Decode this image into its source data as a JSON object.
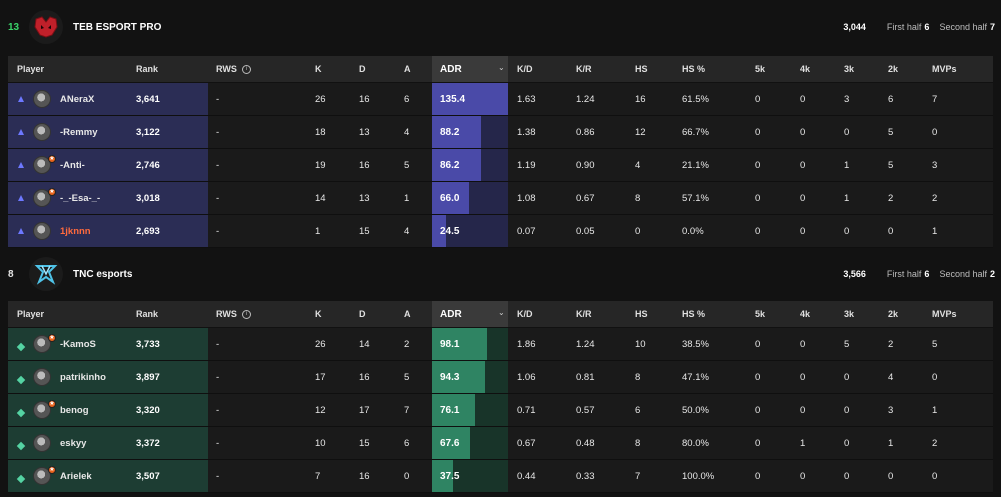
{
  "colors": {
    "team1_accent": "#6d78ff",
    "team2_accent": "#55d3a3",
    "team1_score": "#3ad46a",
    "highlight_player": "#ff6a3d"
  },
  "columns": [
    "Player",
    "Rank",
    "RWS",
    "K",
    "D",
    "A",
    "ADR",
    "K/D",
    "K/R",
    "HS",
    "HS %",
    "5k",
    "4k",
    "3k",
    "2k",
    "MVPs"
  ],
  "teams": [
    {
      "score": "13",
      "name": "TEB ESPORT PRO",
      "logo_icon": "teb-logo-icon",
      "total": "3,044",
      "first_half_label": "First half",
      "first_half": "6",
      "second_half_label": "Second half",
      "second_half": "7",
      "players": [
        {
          "name": "ANeraX",
          "rank": "3,641",
          "rws": "-",
          "k": "26",
          "d": "16",
          "a": "6",
          "adr": "135.4",
          "adr_fill": 1.0,
          "kd": "1.63",
          "kr": "1.24",
          "hs": "16",
          "hsp": "61.5%",
          "k5": "0",
          "k4": "0",
          "k3": "3",
          "k2": "6",
          "mvps": "7",
          "badge": false,
          "highlight": false
        },
        {
          "name": "-Remmy",
          "rank": "3,122",
          "rws": "-",
          "k": "18",
          "d": "13",
          "a": "4",
          "adr": "88.2",
          "adr_fill": 0.65,
          "kd": "1.38",
          "kr": "0.86",
          "hs": "12",
          "hsp": "66.7%",
          "k5": "0",
          "k4": "0",
          "k3": "0",
          "k2": "5",
          "mvps": "0",
          "badge": false,
          "highlight": false
        },
        {
          "name": "-Anti-",
          "rank": "2,746",
          "rws": "-",
          "k": "19",
          "d": "16",
          "a": "5",
          "adr": "86.2",
          "adr_fill": 0.64,
          "kd": "1.19",
          "kr": "0.90",
          "hs": "4",
          "hsp": "21.1%",
          "k5": "0",
          "k4": "0",
          "k3": "1",
          "k2": "5",
          "mvps": "3",
          "badge": true,
          "highlight": false
        },
        {
          "name": "-_-Esa-_-",
          "rank": "3,018",
          "rws": "-",
          "k": "14",
          "d": "13",
          "a": "1",
          "adr": "66.0",
          "adr_fill": 0.49,
          "kd": "1.08",
          "kr": "0.67",
          "hs": "8",
          "hsp": "57.1%",
          "k5": "0",
          "k4": "0",
          "k3": "1",
          "k2": "2",
          "mvps": "2",
          "badge": true,
          "highlight": false
        },
        {
          "name": "1jknnn",
          "rank": "2,693",
          "rws": "-",
          "k": "1",
          "d": "15",
          "a": "4",
          "adr": "24.5",
          "adr_fill": 0.18,
          "kd": "0.07",
          "kr": "0.05",
          "hs": "0",
          "hsp": "0.0%",
          "k5": "0",
          "k4": "0",
          "k3": "0",
          "k2": "0",
          "mvps": "1",
          "badge": false,
          "highlight": true
        }
      ]
    },
    {
      "score": "8",
      "name": "TNC esports",
      "logo_icon": "tnc-logo-icon",
      "total": "3,566",
      "first_half_label": "First half",
      "first_half": "6",
      "second_half_label": "Second half",
      "second_half": "2",
      "players": [
        {
          "name": "-KamoS",
          "rank": "3,733",
          "rws": "-",
          "k": "26",
          "d": "14",
          "a": "2",
          "adr": "98.1",
          "adr_fill": 0.72,
          "kd": "1.86",
          "kr": "1.24",
          "hs": "10",
          "hsp": "38.5%",
          "k5": "0",
          "k4": "0",
          "k3": "5",
          "k2": "2",
          "mvps": "5",
          "badge": true,
          "highlight": false
        },
        {
          "name": "patrikinho",
          "rank": "3,897",
          "rws": "-",
          "k": "17",
          "d": "16",
          "a": "5",
          "adr": "94.3",
          "adr_fill": 0.7,
          "kd": "1.06",
          "kr": "0.81",
          "hs": "8",
          "hsp": "47.1%",
          "k5": "0",
          "k4": "0",
          "k3": "0",
          "k2": "4",
          "mvps": "0",
          "badge": false,
          "highlight": false
        },
        {
          "name": "benog",
          "rank": "3,320",
          "rws": "-",
          "k": "12",
          "d": "17",
          "a": "7",
          "adr": "76.1",
          "adr_fill": 0.56,
          "kd": "0.71",
          "kr": "0.57",
          "hs": "6",
          "hsp": "50.0%",
          "k5": "0",
          "k4": "0",
          "k3": "0",
          "k2": "3",
          "mvps": "1",
          "badge": true,
          "highlight": false
        },
        {
          "name": "eskyy",
          "rank": "3,372",
          "rws": "-",
          "k": "10",
          "d": "15",
          "a": "6",
          "adr": "67.6",
          "adr_fill": 0.5,
          "kd": "0.67",
          "kr": "0.48",
          "hs": "8",
          "hsp": "80.0%",
          "k5": "0",
          "k4": "1",
          "k3": "0",
          "k2": "1",
          "mvps": "2",
          "badge": false,
          "highlight": false
        },
        {
          "name": "Arielek",
          "rank": "3,507",
          "rws": "-",
          "k": "7",
          "d": "16",
          "a": "0",
          "adr": "37.5",
          "adr_fill": 0.28,
          "kd": "0.44",
          "kr": "0.33",
          "hs": "7",
          "hsp": "100.0%",
          "k5": "0",
          "k4": "0",
          "k3": "0",
          "k2": "0",
          "mvps": "0",
          "badge": true,
          "highlight": false
        }
      ]
    }
  ]
}
